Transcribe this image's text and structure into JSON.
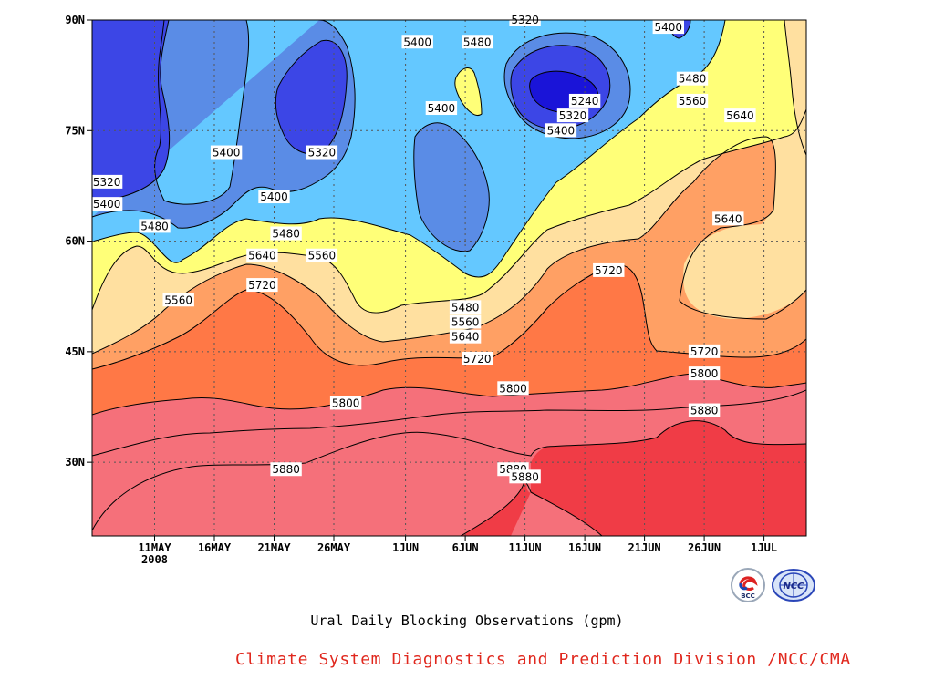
{
  "chart_data": {
    "type": "contour",
    "title": "Ural Daily Blocking Observations (gpm)",
    "x_ticks": [
      "11MAY",
      "16MAY",
      "21MAY",
      "26MAY",
      "1JUN",
      "6JUN",
      "11JUN",
      "16JUN",
      "21JUN",
      "26JUN",
      "1JUL"
    ],
    "x_year_label": "2008",
    "y_ticks": [
      "30N",
      "45N",
      "60N",
      "75N",
      "90N"
    ],
    "y_values": [
      30,
      45,
      60,
      75,
      90
    ],
    "ylim": [
      20,
      90
    ],
    "contour_levels": [
      5240,
      5320,
      5400,
      5480,
      5560,
      5640,
      5720,
      5800,
      5880
    ],
    "level_colors": {
      "below_5240": "#1a14d8",
      "5240": "#3c46e6",
      "5320": "#5a8ce6",
      "5400": "#64c8ff",
      "5480": "#ffff78",
      "5560": "#ffe0a0",
      "5640": "#ffa064",
      "5720": "#ff7846",
      "5800": "#f5707a",
      "5880": "#f03c46"
    },
    "contour_labels": [
      {
        "value": "5320",
        "x_date": "7MAY",
        "lat": 68
      },
      {
        "value": "5400",
        "x_date": "7MAY",
        "lat": 65
      },
      {
        "value": "5480",
        "x_date": "11MAY",
        "lat": 62
      },
      {
        "value": "5560",
        "x_date": "13MAY",
        "lat": 52
      },
      {
        "value": "5400",
        "x_date": "17MAY",
        "lat": 72
      },
      {
        "value": "5640",
        "x_date": "20MAY",
        "lat": 58
      },
      {
        "value": "5720",
        "x_date": "20MAY",
        "lat": 54
      },
      {
        "value": "5400",
        "x_date": "21MAY",
        "lat": 66
      },
      {
        "value": "5480",
        "x_date": "22MAY",
        "lat": 61
      },
      {
        "value": "5880",
        "x_date": "22MAY",
        "lat": 29
      },
      {
        "value": "5320",
        "x_date": "25MAY",
        "lat": 72
      },
      {
        "value": "5560",
        "x_date": "25MAY",
        "lat": 58
      },
      {
        "value": "5800",
        "x_date": "27MAY",
        "lat": 38
      },
      {
        "value": "5400",
        "x_date": "2JUN",
        "lat": 87
      },
      {
        "value": "5400",
        "x_date": "4JUN",
        "lat": 78
      },
      {
        "value": "5480",
        "x_date": "7JUN",
        "lat": 87
      },
      {
        "value": "5480",
        "x_date": "6JUN",
        "lat": 51
      },
      {
        "value": "5560",
        "x_date": "6JUN",
        "lat": 49
      },
      {
        "value": "5640",
        "x_date": "6JUN",
        "lat": 47
      },
      {
        "value": "5720",
        "x_date": "7JUN",
        "lat": 44
      },
      {
        "value": "5800",
        "x_date": "10JUN",
        "lat": 40
      },
      {
        "value": "5880",
        "x_date": "10JUN",
        "lat": 29
      },
      {
        "value": "5880",
        "x_date": "11JUN",
        "lat": 28
      },
      {
        "value": "5320",
        "x_date": "11JUN",
        "lat": 90
      },
      {
        "value": "5240",
        "x_date": "16JUN",
        "lat": 79
      },
      {
        "value": "5320",
        "x_date": "15JUN",
        "lat": 77
      },
      {
        "value": "5400",
        "x_date": "14JUN",
        "lat": 75
      },
      {
        "value": "5720",
        "x_date": "18JUN",
        "lat": 56
      },
      {
        "value": "5400",
        "x_date": "23JUN",
        "lat": 89
      },
      {
        "value": "5480",
        "x_date": "25JUN",
        "lat": 82
      },
      {
        "value": "5560",
        "x_date": "25JUN",
        "lat": 79
      },
      {
        "value": "5640",
        "x_date": "29JUN",
        "lat": 77
      },
      {
        "value": "5640",
        "x_date": "28JUN",
        "lat": 63
      },
      {
        "value": "5720",
        "x_date": "26JUN",
        "lat": 45
      },
      {
        "value": "5800",
        "x_date": "26JUN",
        "lat": 42
      },
      {
        "value": "5880",
        "x_date": "26JUN",
        "lat": 37
      }
    ],
    "grid": true
  },
  "caption": "Ural Daily Blocking Observations (gpm)",
  "credit": "Climate System Diagnostics and Prediction Division /NCC/CMA",
  "logos": [
    {
      "name": "bcc-logo-icon",
      "text": "BCC"
    },
    {
      "name": "ncc-logo-icon",
      "text": "NCC"
    }
  ]
}
